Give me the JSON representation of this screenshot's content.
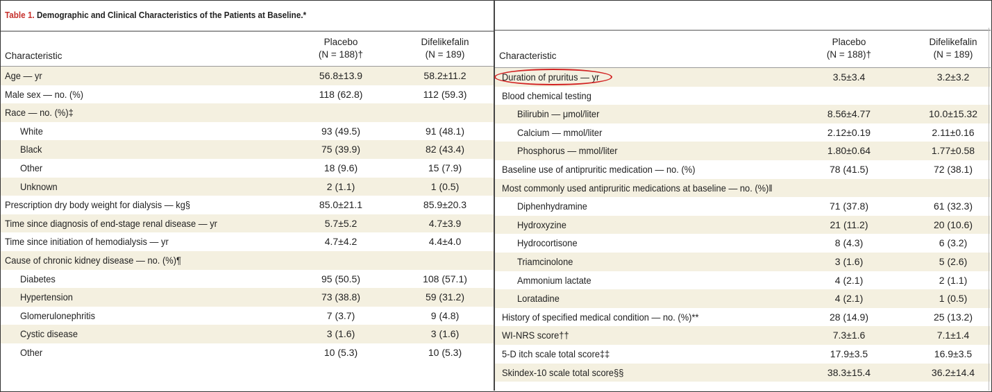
{
  "title": {
    "number": "Table 1.",
    "text": "Demographic and Clinical Characteristics of the Patients at Baseline.*"
  },
  "header": {
    "characteristic": "Characteristic",
    "placebo": "Placebo",
    "placebo_n": "(N = 188)†",
    "difelikefalin": "Difelikefalin",
    "difelikefalin_n": "(N = 189)"
  },
  "left_rows": [
    {
      "label": "Age — yr",
      "placebo": "56.8±13.9",
      "difelikefalin": "58.2±11.2",
      "indent": false
    },
    {
      "label": "Male sex — no. (%)",
      "placebo": "118 (62.8)",
      "difelikefalin": "112 (59.3)",
      "indent": false
    },
    {
      "label": "Race — no. (%)‡",
      "placebo": "",
      "difelikefalin": "",
      "indent": false
    },
    {
      "label": "White",
      "placebo": "93 (49.5)",
      "difelikefalin": "91 (48.1)",
      "indent": true
    },
    {
      "label": "Black",
      "placebo": "75 (39.9)",
      "difelikefalin": "82 (43.4)",
      "indent": true
    },
    {
      "label": "Other",
      "placebo": "18 (9.6)",
      "difelikefalin": "15 (7.9)",
      "indent": true
    },
    {
      "label": "Unknown",
      "placebo": "2 (1.1)",
      "difelikefalin": "1 (0.5)",
      "indent": true
    },
    {
      "label": "Prescription dry body weight for dialysis — kg§",
      "placebo": "85.0±21.1",
      "difelikefalin": "85.9±20.3",
      "indent": false
    },
    {
      "label": "Time since diagnosis of end-stage renal disease — yr",
      "placebo": "5.7±5.2",
      "difelikefalin": "4.7±3.9",
      "indent": false
    },
    {
      "label": "Time since initiation of hemodialysis — yr",
      "placebo": "4.7±4.2",
      "difelikefalin": "4.4±4.0",
      "indent": false
    },
    {
      "label": "Cause of chronic kidney disease — no. (%)¶",
      "placebo": "",
      "difelikefalin": "",
      "indent": false
    },
    {
      "label": "Diabetes",
      "placebo": "95 (50.5)",
      "difelikefalin": "108 (57.1)",
      "indent": true
    },
    {
      "label": "Hypertension",
      "placebo": "73 (38.8)",
      "difelikefalin": "59 (31.2)",
      "indent": true
    },
    {
      "label": "Glomerulonephritis",
      "placebo": "7 (3.7)",
      "difelikefalin": "9 (4.8)",
      "indent": true
    },
    {
      "label": "Cystic disease",
      "placebo": "3 (1.6)",
      "difelikefalin": "3 (1.6)",
      "indent": true
    },
    {
      "label": "Other",
      "placebo": "10 (5.3)",
      "difelikefalin": "10 (5.3)",
      "indent": true
    }
  ],
  "right_rows": [
    {
      "label": "Duration of pruritus — yr",
      "placebo": "3.5±3.4",
      "difelikefalin": "3.2±3.2",
      "indent": false
    },
    {
      "label": "Blood chemical testing",
      "placebo": "",
      "difelikefalin": "",
      "indent": false
    },
    {
      "label": "Bilirubin — μmol/liter",
      "placebo": "8.56±4.77",
      "difelikefalin": "10.0±15.32",
      "indent": true
    },
    {
      "label": "Calcium — mmol/liter",
      "placebo": "2.12±0.19",
      "difelikefalin": "2.11±0.16",
      "indent": true
    },
    {
      "label": "Phosphorus — mmol/liter",
      "placebo": "1.80±0.64",
      "difelikefalin": "1.77±0.58",
      "indent": true
    },
    {
      "label": "Baseline use of antipruritic medication — no. (%)",
      "placebo": "78 (41.5)",
      "difelikefalin": "72 (38.1)",
      "indent": false
    },
    {
      "label": "Most commonly used antipruritic medications at baseline — no. (%)‖",
      "placebo": "",
      "difelikefalin": "",
      "indent": false
    },
    {
      "label": "Diphenhydramine",
      "placebo": "71 (37.8)",
      "difelikefalin": "61 (32.3)",
      "indent": true
    },
    {
      "label": "Hydroxyzine",
      "placebo": "21 (11.2)",
      "difelikefalin": "20 (10.6)",
      "indent": true
    },
    {
      "label": "Hydrocortisone",
      "placebo": "8 (4.3)",
      "difelikefalin": "6 (3.2)",
      "indent": true
    },
    {
      "label": "Triamcinolone",
      "placebo": "3 (1.6)",
      "difelikefalin": "5 (2.6)",
      "indent": true
    },
    {
      "label": "Ammonium lactate",
      "placebo": "4 (2.1)",
      "difelikefalin": "2 (1.1)",
      "indent": true
    },
    {
      "label": "Loratadine",
      "placebo": "4 (2.1)",
      "difelikefalin": "1 (0.5)",
      "indent": true
    },
    {
      "label": "History of specified medical condition — no. (%)**",
      "placebo": "28 (14.9)",
      "difelikefalin": "25 (13.2)",
      "indent": false
    },
    {
      "label": "WI-NRS score††",
      "placebo": "7.3±1.6",
      "difelikefalin": "7.1±1.4",
      "indent": false
    },
    {
      "label": "5-D itch scale total score‡‡",
      "placebo": "17.9±3.5",
      "difelikefalin": "16.9±3.5",
      "indent": false
    },
    {
      "label": "Skindex-10 scale total score§§",
      "placebo": "38.3±15.4",
      "difelikefalin": "36.2±14.4",
      "indent": false
    }
  ],
  "highlight": {
    "color": "#d22222"
  }
}
